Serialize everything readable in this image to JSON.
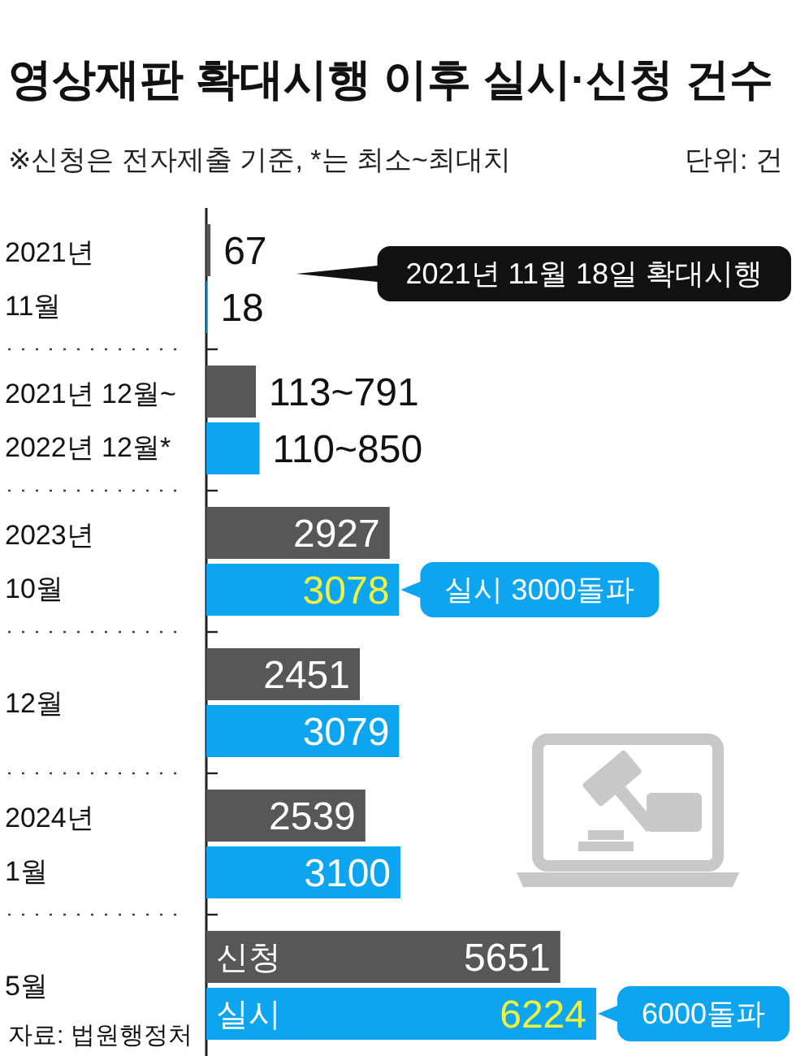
{
  "chart_data": {
    "type": "bar",
    "orientation": "horizontal",
    "title": "영상재판 확대시행 이후 실시·신청 건수",
    "subtitle": "※신청은 전자제출 기준, *는 최소~최대치",
    "categories": [
      "2021년\n11월",
      "2021년 12월~\n2022년 12월*",
      "2023년\n10월",
      "12월",
      "2024년\n1월",
      "5월"
    ],
    "series": [
      {
        "name": "신청",
        "color": "#575757",
        "values": [
          67,
          791,
          2927,
          2451,
          2539,
          5651
        ],
        "value_labels": [
          "67",
          "113~791",
          "2927",
          "2451",
          "2539",
          "5651"
        ]
      },
      {
        "name": "실시",
        "color": "#0ea5f0",
        "values": [
          18,
          850,
          3078,
          3079,
          3100,
          6224
        ],
        "value_labels": [
          "18",
          "110~850",
          "3078",
          "3079",
          "3100",
          "6224"
        ]
      }
    ],
    "annotations": [
      "단위: 건",
      "2021년 11월 18일 확대시행",
      {
        "text": "실시 3000돌파",
        "x": 3078,
        "y": "2023년\n10월"
      },
      {
        "text": "6000돌파",
        "x": 6224,
        "y": "5월"
      },
      "자료: 법원행정처"
    ]
  }
}
